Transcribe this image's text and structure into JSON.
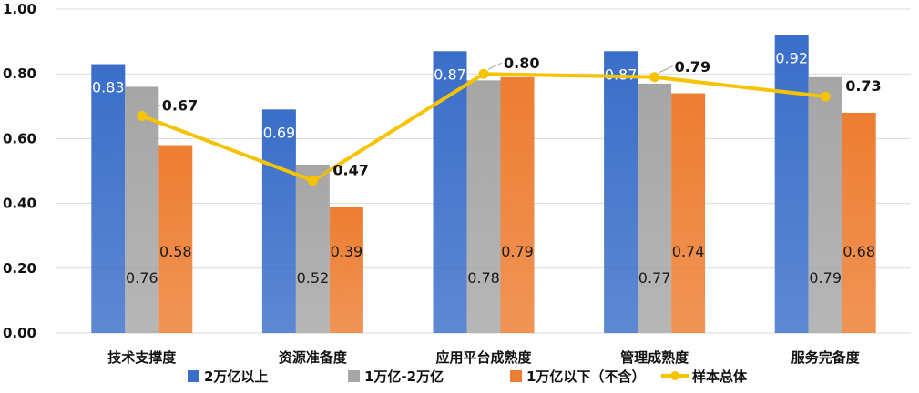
{
  "chart_data": {
    "type": "bar",
    "categories": [
      "技术支撑度",
      "资源准备度",
      "应用平台成熟度",
      "管理成熟度",
      "服务完备度"
    ],
    "series": [
      {
        "name": "2万亿以上",
        "type": "bar",
        "color": "#3a6ec9",
        "values": [
          0.83,
          0.69,
          0.87,
          0.87,
          0.92
        ]
      },
      {
        "name": "1万亿-2万亿",
        "type": "bar",
        "color": "#a6a6a6",
        "values": [
          0.76,
          0.52,
          0.78,
          0.77,
          0.79
        ]
      },
      {
        "name": "1万亿以下（不含）",
        "type": "bar",
        "color": "#ed7d31",
        "values": [
          0.58,
          0.39,
          0.79,
          0.74,
          0.68
        ]
      },
      {
        "name": "样本总体",
        "type": "line",
        "color": "#f5c300",
        "values": [
          0.67,
          0.47,
          0.8,
          0.79,
          0.73
        ]
      }
    ],
    "y_tick_labels": [
      "0.00",
      "0.20",
      "0.40",
      "0.60",
      "0.80",
      "1.00"
    ],
    "ylim": [
      0,
      1.0
    ],
    "grid": true,
    "legend_position": "bottom"
  }
}
